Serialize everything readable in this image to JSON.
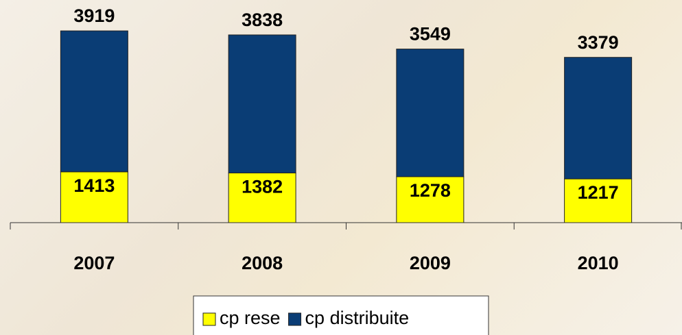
{
  "chart_data": {
    "type": "stacked-bar",
    "categories": [
      "2007",
      "2008",
      "2009",
      "2010"
    ],
    "series": [
      {
        "name": "cp rese",
        "color": "#ffff00",
        "values": [
          1413,
          1382,
          1278,
          1217
        ]
      },
      {
        "name": "cp distribuite",
        "color": "#0a3d75",
        "values": [
          3919,
          3838,
          3549,
          3379
        ]
      }
    ],
    "ylim": [
      0,
      6000
    ],
    "legend": "bottom"
  }
}
